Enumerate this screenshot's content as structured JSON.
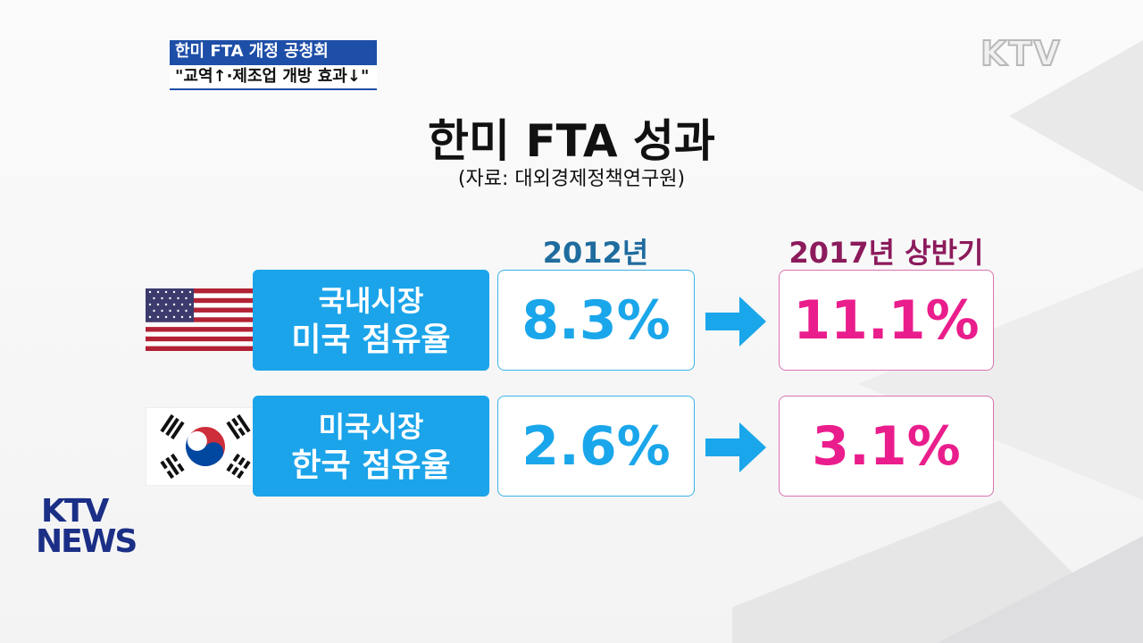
{
  "banner": {
    "title": "한미 FTA 개정 공청회",
    "subtitle": "\"교역↑·제조업 개방 효과↓\""
  },
  "logo": {
    "top": "KTV",
    "bottom": [
      "KTV",
      "NEWS"
    ]
  },
  "header": {
    "title": "한미 FTA 성과",
    "source": "(자료: 대외경제정책연구원)"
  },
  "table": {
    "columns": [
      "2012년",
      "2017년 상반기"
    ],
    "rows": [
      {
        "label": [
          "국내시장",
          "미국 점유율"
        ],
        "values": [
          "8.3%",
          "11.1%"
        ]
      },
      {
        "label": [
          "미국시장",
          "한국 점유율"
        ],
        "values": [
          "2.6%",
          "3.1%"
        ]
      }
    ]
  }
}
